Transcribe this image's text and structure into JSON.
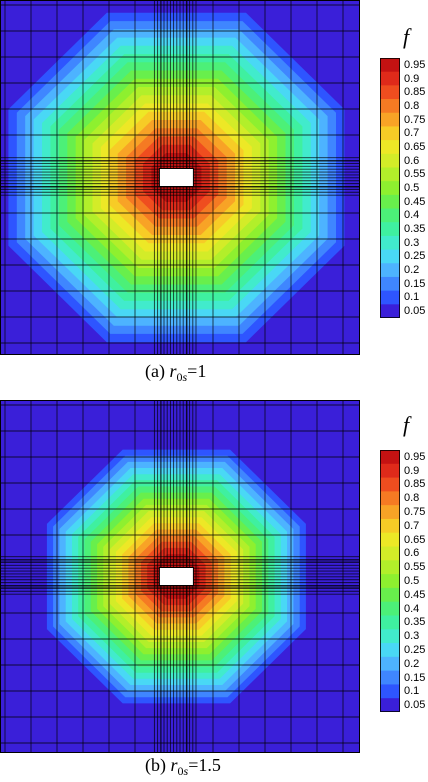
{
  "figure": {
    "panels": [
      {
        "id": "a",
        "caption_prefix": "(a) ",
        "caption_symbol": "r",
        "caption_sub_0": "0",
        "caption_sub_s": "s",
        "caption_value": "=1",
        "colorbar_title": "f",
        "colorbar_ticks": [
          "0.95",
          "0.9",
          "0.85",
          "0.8",
          "0.75",
          "0.7",
          "0.65",
          "0.6",
          "0.55",
          "0.5",
          "0.45",
          "0.4",
          "0.35",
          "0.3",
          "0.25",
          "0.2",
          "0.15",
          "0.1",
          "0.05"
        ],
        "field_radius": 0.8
      },
      {
        "id": "b",
        "caption_prefix": "(b) ",
        "caption_symbol": "r",
        "caption_sub_0": "0",
        "caption_sub_s": "s",
        "caption_value": "=1.5",
        "colorbar_title": "f",
        "colorbar_ticks": [
          "0.95",
          "0.9",
          "0.85",
          "0.8",
          "0.75",
          "0.7",
          "0.65",
          "0.6",
          "0.55",
          "0.5",
          "0.45",
          "0.4",
          "0.35",
          "0.3",
          "0.25",
          "0.2",
          "0.15",
          "0.1",
          "0.05"
        ],
        "field_radius": 0.6
      }
    ],
    "colormap": [
      "#3a1fd9",
      "#2e55ff",
      "#3f86ff",
      "#4db3ff",
      "#49d8f5",
      "#41ebcc",
      "#3ff0a0",
      "#4cf078",
      "#68ef4c",
      "#8ef02f",
      "#b2ef2a",
      "#d3ec28",
      "#ede826",
      "#f7cc26",
      "#f8a326",
      "#f57a23",
      "#ef4d1f",
      "#df2a1a",
      "#c41212"
    ]
  }
}
